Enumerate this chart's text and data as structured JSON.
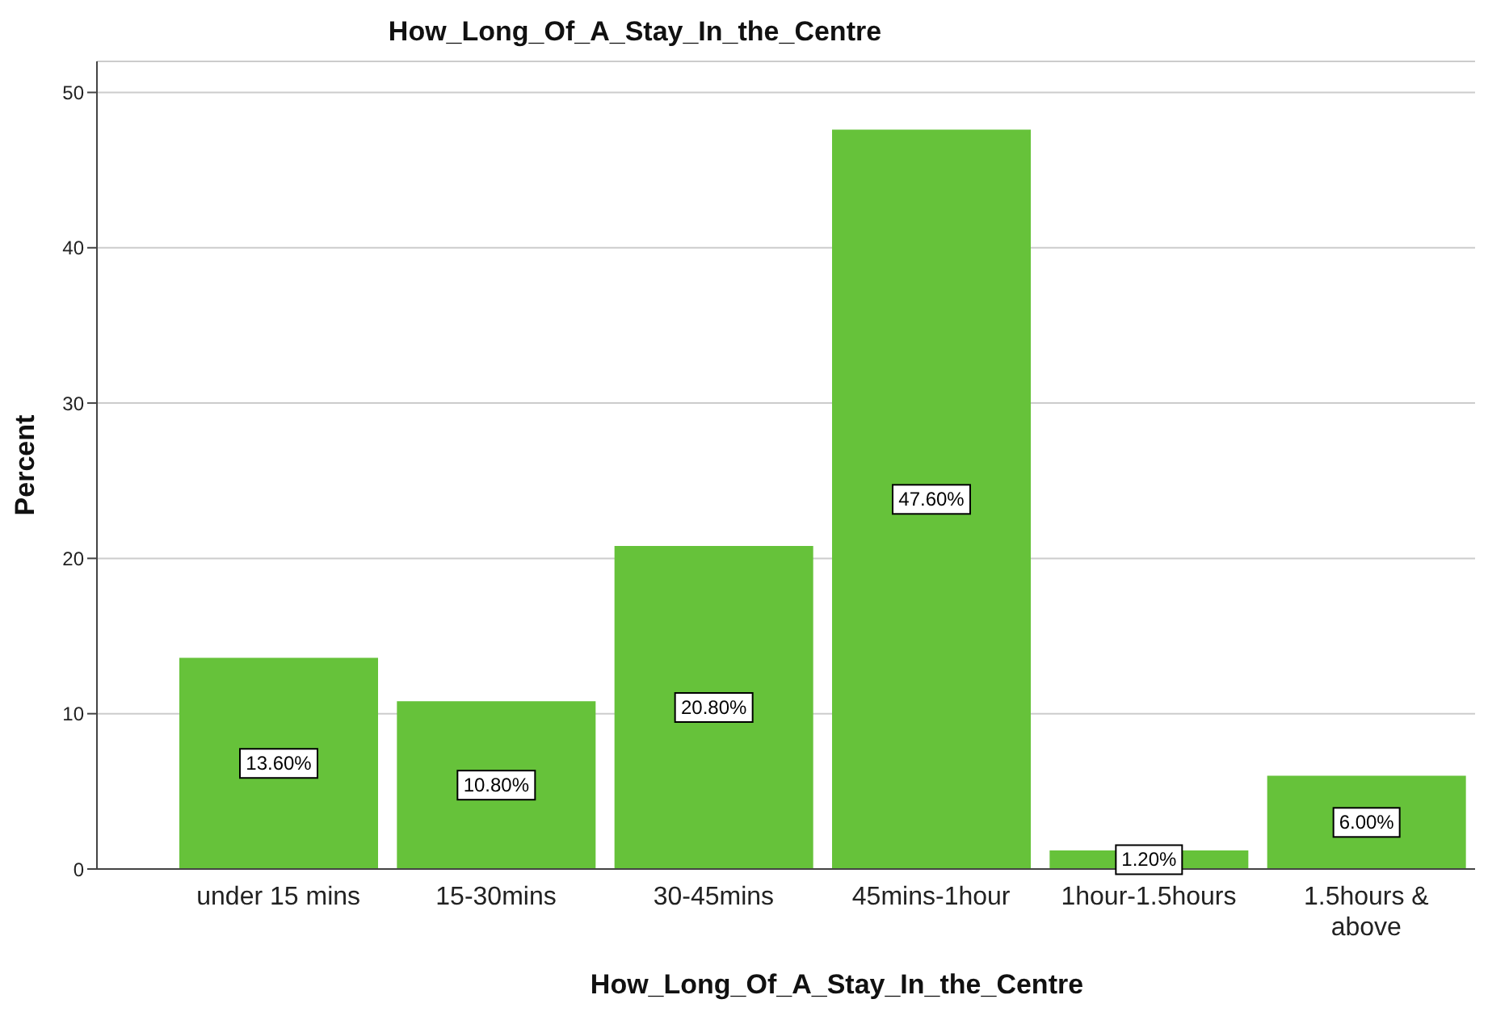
{
  "chart_data": {
    "type": "bar",
    "title": "How_Long_Of_A_Stay_In_the_Centre",
    "xlabel": "How_Long_Of_A_Stay_In_the_Centre",
    "ylabel": "Percent",
    "categories": [
      "under 15 mins",
      "15-30mins",
      "30-45mins",
      "45mins-1hour",
      "1hour-1.5hours",
      "1.5hours & above"
    ],
    "values": [
      13.6,
      10.8,
      20.8,
      47.6,
      1.2,
      6.0
    ],
    "value_labels": [
      "13.60%",
      "10.80%",
      "20.80%",
      "47.60%",
      "1.20%",
      "6.00%"
    ],
    "color": "#66c23a",
    "ylim": [
      0,
      52
    ],
    "yticks": [
      0,
      10,
      20,
      30,
      40,
      50
    ],
    "grid": "y"
  }
}
